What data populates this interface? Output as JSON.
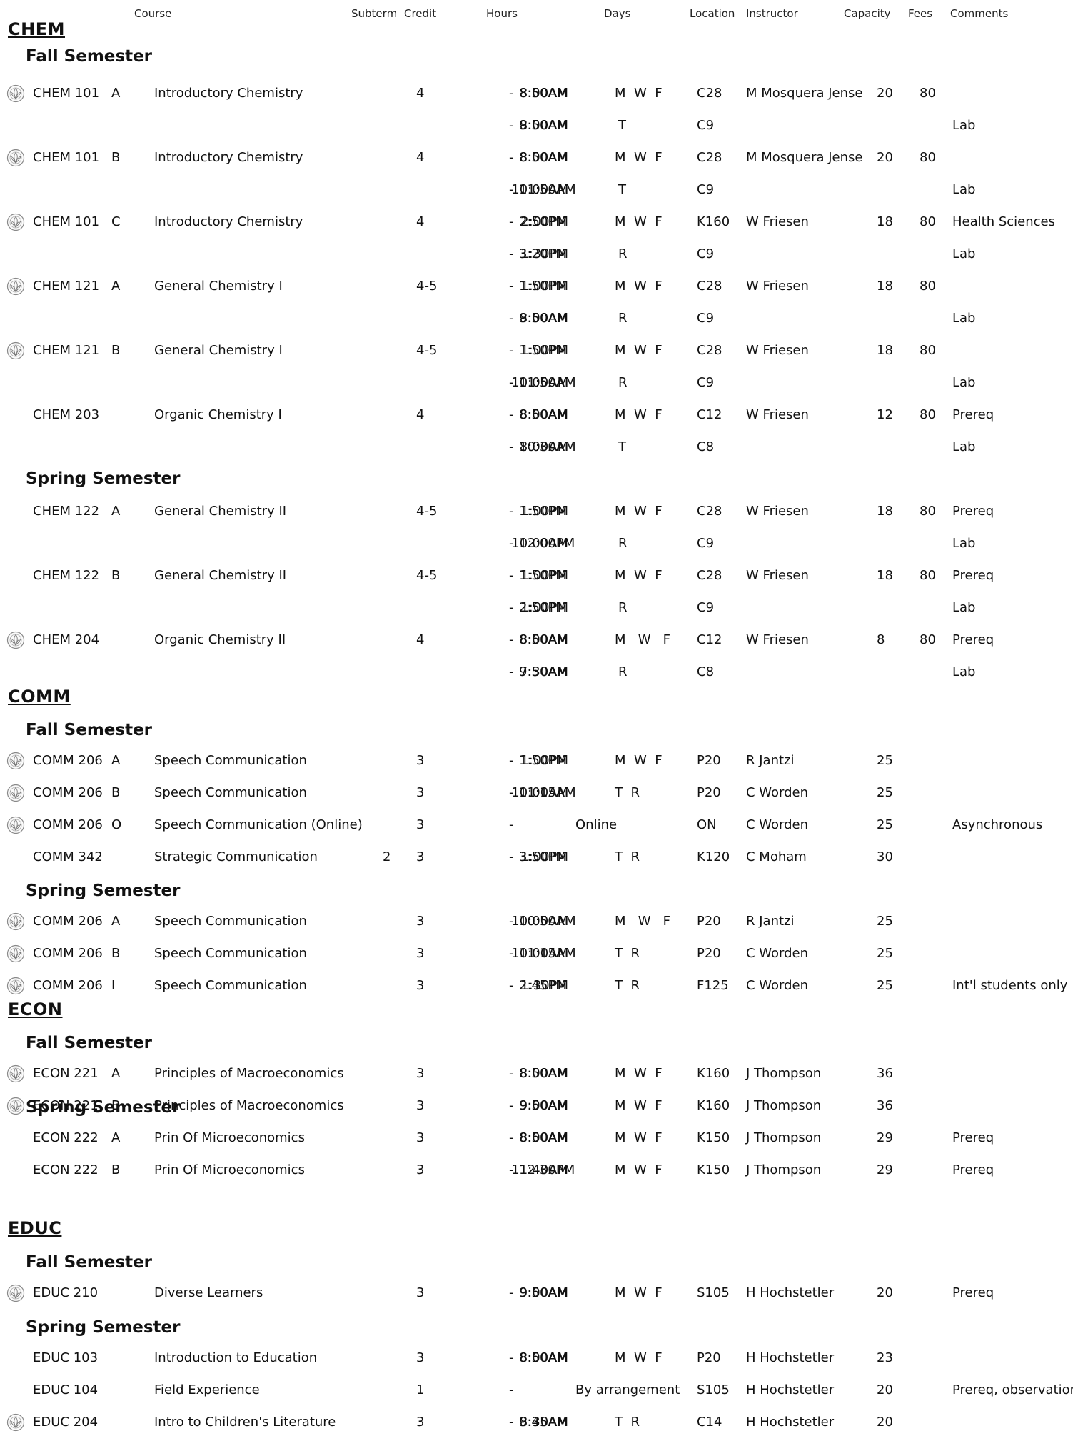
{
  "headers": {
    "course": "Course",
    "subterm": "Subterm",
    "credit": "Credit",
    "hours": "Hours",
    "days": "Days",
    "location": "Location",
    "instructor": "Instructor",
    "capacity": "Capacity",
    "fees": "Fees",
    "comments": "Comments"
  },
  "departments": [
    {
      "name": "CHEM",
      "semesters": [
        {
          "title": "Fall Semester",
          "rows": [
            {
              "icon": true,
              "code": "CHEM 101",
              "section": "A",
              "title": "Introductory Chemistry",
              "subterm": "",
              "credit": "4",
              "start": "8:00AM",
              "end": "8:50AM",
              "days": "M  W  F",
              "location": "C28",
              "instructor": "M Mosquera Jense",
              "capacity": "20",
              "fees": "80",
              "comments": ""
            },
            {
              "icon": false,
              "code": "",
              "section": "",
              "title": "",
              "subterm": "",
              "credit": "",
              "start": "8:00AM",
              "end": "9:50AM",
              "days": "T",
              "location": "C9",
              "instructor": "",
              "capacity": "",
              "fees": "",
              "comments": "Lab"
            },
            {
              "icon": true,
              "code": "CHEM 101",
              "section": "B",
              "title": "Introductory Chemistry",
              "subterm": "",
              "credit": "4",
              "start": "8:00AM",
              "end": "8:50AM",
              "days": "M  W  F",
              "location": "C28",
              "instructor": "M Mosquera Jense",
              "capacity": "20",
              "fees": "80",
              "comments": ""
            },
            {
              "icon": false,
              "code": "",
              "section": "",
              "title": "",
              "subterm": "",
              "credit": "",
              "start": "10:00AM",
              "end": "11:50AM",
              "days": "T",
              "location": "C9",
              "instructor": "",
              "capacity": "",
              "fees": "",
              "comments": "Lab"
            },
            {
              "icon": true,
              "code": "CHEM 101",
              "section": "C",
              "title": "Introductory Chemistry",
              "subterm": "",
              "credit": "4",
              "start": "2:00PM",
              "end": "2:50PM",
              "days": "M  W  F",
              "location": "K160",
              "instructor": "W Friesen",
              "capacity": "18",
              "fees": "80",
              "comments": "Health Sciences"
            },
            {
              "icon": false,
              "code": "",
              "section": "",
              "title": "",
              "subterm": "",
              "credit": "",
              "start": "1:30PM",
              "end": "3:20PM",
              "days": "R",
              "location": "C9",
              "instructor": "",
              "capacity": "",
              "fees": "",
              "comments": "Lab"
            },
            {
              "icon": true,
              "code": "CHEM 121",
              "section": "A",
              "title": "General Chemistry I",
              "subterm": "",
              "credit": "4-5",
              "start": "1:00PM",
              "end": "1:50PM",
              "days": "M  W  F",
              "location": "C28",
              "instructor": "W Friesen",
              "capacity": "18",
              "fees": "80",
              "comments": ""
            },
            {
              "icon": false,
              "code": "",
              "section": "",
              "title": "",
              "subterm": "",
              "credit": "",
              "start": "8:00AM",
              "end": "9:50AM",
              "days": "R",
              "location": "C9",
              "instructor": "",
              "capacity": "",
              "fees": "",
              "comments": "Lab"
            },
            {
              "icon": true,
              "code": "CHEM 121",
              "section": "B",
              "title": "General Chemistry I",
              "subterm": "",
              "credit": "4-5",
              "start": "1:00PM",
              "end": "1:50PM",
              "days": "M  W  F",
              "location": "C28",
              "instructor": "W Friesen",
              "capacity": "18",
              "fees": "80",
              "comments": ""
            },
            {
              "icon": false,
              "code": "",
              "section": "",
              "title": "",
              "subterm": "",
              "credit": "",
              "start": "10:00AM",
              "end": "11:50AM",
              "days": "R",
              "location": "C9",
              "instructor": "",
              "capacity": "",
              "fees": "",
              "comments": "Lab"
            },
            {
              "icon": false,
              "code": "CHEM 203",
              "section": "",
              "title": "Organic Chemistry I",
              "subterm": "",
              "credit": "4",
              "start": "8:00AM",
              "end": "8:50AM",
              "days": "M  W  F",
              "location": "C12",
              "instructor": "W Friesen",
              "capacity": "12",
              "fees": "80",
              "comments": "Prereq"
            },
            {
              "icon": false,
              "code": "",
              "section": "",
              "title": "",
              "subterm": "",
              "credit": "",
              "start": "8:00AM",
              "end": "10:30AM",
              "days": "T",
              "location": "C8",
              "instructor": "",
              "capacity": "",
              "fees": "",
              "comments": "Lab"
            }
          ]
        },
        {
          "title": "Spring Semester",
          "rows": [
            {
              "icon": false,
              "code": "CHEM 122",
              "section": "A",
              "title": "General Chemistry II",
              "subterm": "",
              "credit": "4-5",
              "start": "1:00PM",
              "end": "1:50PM",
              "days": "M  W  F",
              "location": "C28",
              "instructor": "W Friesen",
              "capacity": "18",
              "fees": "80",
              "comments": "Prereq"
            },
            {
              "icon": false,
              "code": "",
              "section": "",
              "title": "",
              "subterm": "",
              "credit": "",
              "start": "10:00AM",
              "end": "12:00PM",
              "days": "R",
              "location": "C9",
              "instructor": "",
              "capacity": "",
              "fees": "",
              "comments": "Lab"
            },
            {
              "icon": false,
              "code": "CHEM 122",
              "section": "B",
              "title": "General Chemistry II",
              "subterm": "",
              "credit": "4-5",
              "start": "1:00PM",
              "end": "1:50PM",
              "days": "M  W  F",
              "location": "C28",
              "instructor": "W Friesen",
              "capacity": "18",
              "fees": "80",
              "comments": "Prereq"
            },
            {
              "icon": false,
              "code": "",
              "section": "",
              "title": "",
              "subterm": "",
              "credit": "",
              "start": "1:00PM",
              "end": "2:50PM",
              "days": "R",
              "location": "C9",
              "instructor": "",
              "capacity": "",
              "fees": "",
              "comments": "Lab"
            },
            {
              "icon": true,
              "code": "CHEM 204",
              "section": "",
              "title": "Organic Chemistry II",
              "subterm": "",
              "credit": "4",
              "start": "8:00AM",
              "end": "8:50AM",
              "days": "M   W   F",
              "location": "C12",
              "instructor": "W Friesen",
              "capacity": "8",
              "fees": "80",
              "comments": "Prereq"
            },
            {
              "icon": false,
              "code": "",
              "section": "",
              "title": "",
              "subterm": "",
              "credit": "",
              "start": "7:30AM",
              "end": "9:50AM",
              "days": "R",
              "location": "C8",
              "instructor": "",
              "capacity": "",
              "fees": "",
              "comments": "Lab"
            }
          ]
        }
      ]
    },
    {
      "name": "COMM",
      "semesters": [
        {
          "title": "Fall Semester",
          "rows": [
            {
              "icon": true,
              "code": "COMM 206",
              "section": "A",
              "title": "Speech Communication",
              "subterm": "",
              "credit": "3",
              "start": "1:00PM",
              "end": "1:50PM",
              "days": "M  W  F",
              "location": "P20",
              "instructor": "R Jantzi",
              "capacity": "25",
              "fees": "",
              "comments": ""
            },
            {
              "icon": true,
              "code": "COMM 206",
              "section": "B",
              "title": "Speech Communication",
              "subterm": "",
              "credit": "3",
              "start": "10:00AM",
              "end": "11:15AM",
              "days": "T  R",
              "location": "P20",
              "instructor": "C Worden",
              "capacity": "25",
              "fees": "",
              "comments": ""
            },
            {
              "icon": true,
              "code": "COMM 206",
              "section": "O",
              "title": "Speech Communication (Online)",
              "subterm": "",
              "credit": "3",
              "start": "",
              "end": "",
              "days": "Online",
              "location": "ON",
              "instructor": "C Worden",
              "capacity": "25",
              "fees": "",
              "comments": "Asynchronous"
            },
            {
              "icon": false,
              "code": "COMM 342",
              "section": "",
              "title": "Strategic Communication",
              "subterm": "2",
              "credit": "3",
              "start": "1:00PM",
              "end": "3:50PM",
              "days": "T  R",
              "location": "K120",
              "instructor": "C Moham",
              "capacity": "30",
              "fees": "",
              "comments": ""
            }
          ]
        },
        {
          "title": "Spring Semester",
          "rows": [
            {
              "icon": true,
              "code": "COMM 206",
              "section": "A",
              "title": "Speech Communication",
              "subterm": "",
              "credit": "3",
              "start": "10:00AM",
              "end": "10:50AM",
              "days": "M   W   F",
              "location": "P20",
              "instructor": "R Jantzi",
              "capacity": "25",
              "fees": "",
              "comments": ""
            },
            {
              "icon": true,
              "code": "COMM 206",
              "section": "B",
              "title": "Speech Communication",
              "subterm": "",
              "credit": "3",
              "start": "10:00AM",
              "end": "11:15AM",
              "days": "T  R",
              "location": "P20",
              "instructor": "C Worden",
              "capacity": "25",
              "fees": "",
              "comments": ""
            },
            {
              "icon": true,
              "code": "COMM 206",
              "section": "I",
              "title": "Speech Communication",
              "subterm": "",
              "credit": "3",
              "start": "1:30PM",
              "end": "2:45PM",
              "days": "T  R",
              "location": "F125",
              "instructor": "C Worden",
              "capacity": "25",
              "fees": "",
              "comments": "Int'l students only"
            }
          ]
        }
      ]
    },
    {
      "name": "ECON",
      "semesters": [
        {
          "title": "Fall Semester",
          "rows": [
            {
              "icon": true,
              "code": "ECON 221",
              "section": "A",
              "title": "Principles of Macroeconomics",
              "subterm": "",
              "credit": "3",
              "start": "8:00AM",
              "end": "8:50AM",
              "days": "M  W  F",
              "location": "K160",
              "instructor": "J Thompson",
              "capacity": "36",
              "fees": "",
              "comments": ""
            },
            {
              "icon": true,
              "code": "ECON 221",
              "section": "B",
              "title": "Principles of Macroeconomics",
              "subterm": "",
              "credit": "3",
              "start": "9:00AM",
              "end": "9:50AM",
              "days": "M  W  F",
              "location": "K160",
              "instructor": "J Thompson",
              "capacity": "36",
              "fees": "",
              "comments": ""
            }
          ]
        },
        {
          "title": "Spring Semester",
          "rows": [
            {
              "icon": false,
              "code": "ECON 222",
              "section": "A",
              "title": "Prin Of Microeconomics",
              "subterm": "",
              "credit": "3",
              "start": "8:00AM",
              "end": "8:50AM",
              "days": "M  W  F",
              "location": "K150",
              "instructor": "J Thompson",
              "capacity": "29",
              "fees": "",
              "comments": "Prereq"
            },
            {
              "icon": false,
              "code": "ECON 222",
              "section": "B",
              "title": "Prin Of Microeconomics",
              "subterm": "",
              "credit": "3",
              "start": "11:40AM",
              "end": "12:30PM",
              "days": "M  W  F",
              "location": "K150",
              "instructor": "J Thompson",
              "capacity": "29",
              "fees": "",
              "comments": "Prereq"
            }
          ]
        }
      ]
    },
    {
      "name": "EDUC",
      "semesters": [
        {
          "title": "Fall Semester",
          "rows": [
            {
              "icon": true,
              "code": "EDUC 210",
              "section": "",
              "title": "Diverse Learners",
              "subterm": "",
              "credit": "3",
              "start": "9:00AM",
              "end": "9:50AM",
              "days": "M  W  F",
              "location": "S105",
              "instructor": "H Hochstetler",
              "capacity": "20",
              "fees": "",
              "comments": "Prereq"
            }
          ]
        },
        {
          "title": "Spring Semester",
          "rows": [
            {
              "icon": false,
              "code": "EDUC 103",
              "section": "",
              "title": "Introduction to Education",
              "subterm": "",
              "credit": "3",
              "start": "8:00AM",
              "end": "8:50AM",
              "days": "M  W  F",
              "location": "P20",
              "instructor": "H Hochstetler",
              "capacity": "23",
              "fees": "",
              "comments": ""
            },
            {
              "icon": false,
              "code": "EDUC 104",
              "section": "",
              "title": "Field Experience",
              "subterm": "",
              "credit": "1",
              "start": "",
              "end": "",
              "days": "By arrangement",
              "location": "S105",
              "instructor": "H Hochstetler",
              "capacity": "20",
              "fees": "",
              "comments": "Prereq, observation"
            },
            {
              "icon": true,
              "code": "EDUC 204",
              "section": "",
              "title": "Intro to Children's Literature",
              "subterm": "",
              "credit": "3",
              "start": "8:30AM",
              "end": "9:45AM",
              "days": "T  R",
              "location": "C14",
              "instructor": "H Hochstetler",
              "capacity": "20",
              "fees": "",
              "comments": ""
            }
          ]
        }
      ]
    }
  ]
}
